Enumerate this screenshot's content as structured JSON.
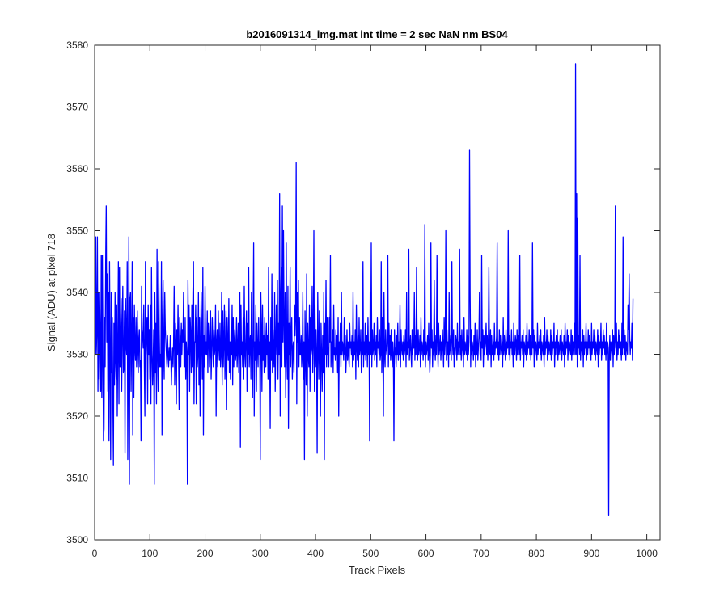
{
  "chart_data": {
    "type": "line",
    "title": "b2016091314_img.mat int time = 2 sec  NaN nm BS04",
    "xlabel": "Track Pixels",
    "ylabel": "Signal (ADU) at pixel 718",
    "xlim": [
      0,
      1024
    ],
    "ylim": [
      3500,
      3580
    ],
    "xticks": [
      "0",
      "100",
      "200",
      "300",
      "400",
      "500",
      "600",
      "700",
      "800",
      "900",
      "1000"
    ],
    "yticks": [
      "3500",
      "3510",
      "3520",
      "3530",
      "3540",
      "3550",
      "3560",
      "3570",
      "3580"
    ],
    "grid": false,
    "series": [
      {
        "color": "#0000ff",
        "x_start": 1,
        "x_step": 1,
        "note_estimated": true,
        "values": [
          3530,
          3549,
          3530,
          3534,
          3549,
          3524,
          3540,
          3526,
          3540,
          3532,
          3524,
          3546,
          3523,
          3546,
          3530,
          3516,
          3518,
          3536,
          3528,
          3545,
          3554,
          3532,
          3543,
          3524,
          3540,
          3516,
          3545,
          3530,
          3513,
          3540,
          3527,
          3536,
          3523,
          3512,
          3535,
          3525,
          3540,
          3529,
          3526,
          3538,
          3520,
          3531,
          3545,
          3522,
          3544,
          3528,
          3530,
          3539,
          3524,
          3534,
          3541,
          3527,
          3528,
          3537,
          3514,
          3539,
          3532,
          3530,
          3545,
          3513,
          3529,
          3549,
          3509,
          3539,
          3540,
          3524,
          3532,
          3545,
          3517,
          3536,
          3523,
          3538,
          3531,
          3529,
          3536,
          3528,
          3531,
          3537,
          3527,
          3532,
          3534,
          3528,
          3529,
          3516,
          3541,
          3534,
          3533,
          3531,
          3538,
          3528,
          3520,
          3545,
          3530,
          3534,
          3536,
          3522,
          3538,
          3530,
          3534,
          3526,
          3538,
          3522,
          3544,
          3530,
          3525,
          3529,
          3534,
          3509,
          3540,
          3527,
          3535,
          3522,
          3547,
          3530,
          3524,
          3545,
          3534,
          3528,
          3530,
          3528,
          3545,
          3517,
          3534,
          3542,
          3530,
          3526,
          3540,
          3534,
          3532,
          3530,
          3528,
          3533,
          3530,
          3528,
          3531,
          3529,
          3533,
          3530,
          3525,
          3529,
          3531,
          3528,
          3532,
          3541,
          3525,
          3530,
          3535,
          3522,
          3534,
          3530,
          3538,
          3530,
          3521,
          3536,
          3532,
          3528,
          3535,
          3530,
          3534,
          3532,
          3540,
          3528,
          3528,
          3536,
          3526,
          3532,
          3530,
          3509,
          3542,
          3530,
          3538,
          3524,
          3536,
          3533,
          3527,
          3538,
          3528,
          3540,
          3545,
          3522,
          3532,
          3532,
          3538,
          3522,
          3536,
          3528,
          3530,
          3540,
          3525,
          3536,
          3520,
          3532,
          3540,
          3532,
          3526,
          3544,
          3517,
          3533,
          3528,
          3541,
          3530,
          3532,
          3530,
          3537,
          3527,
          3535,
          3533,
          3528,
          3530,
          3537,
          3526,
          3530,
          3536,
          3532,
          3528,
          3534,
          3530,
          3531,
          3538,
          3520,
          3532,
          3534,
          3528,
          3537,
          3531,
          3529,
          3535,
          3528,
          3530,
          3540,
          3525,
          3537,
          3528,
          3532,
          3538,
          3526,
          3530,
          3537,
          3521,
          3536,
          3531,
          3529,
          3539,
          3527,
          3532,
          3526,
          3534,
          3530,
          3538,
          3525,
          3536,
          3528,
          3532,
          3534,
          3529,
          3530,
          3536,
          3528,
          3531,
          3535,
          3527,
          3532,
          3540,
          3515,
          3538,
          3530,
          3532,
          3528,
          3536,
          3526,
          3541,
          3530,
          3528,
          3533,
          3537,
          3524,
          3535,
          3530,
          3544,
          3528,
          3532,
          3533,
          3526,
          3540,
          3531,
          3523,
          3535,
          3548,
          3520,
          3532,
          3529,
          3538,
          3524,
          3535,
          3531,
          3528,
          3536,
          3530,
          3532,
          3513,
          3540,
          3534,
          3524,
          3538,
          3529,
          3533,
          3527,
          3536,
          3531,
          3528,
          3535,
          3530,
          3533,
          3526,
          3544,
          3530,
          3532,
          3518,
          3536,
          3529,
          3543,
          3527,
          3534,
          3530,
          3528,
          3540,
          3524,
          3532,
          3538,
          3530,
          3542,
          3526,
          3535,
          3530,
          3556,
          3520,
          3538,
          3544,
          3528,
          3554,
          3532,
          3550,
          3535,
          3528,
          3540,
          3523,
          3548,
          3530,
          3526,
          3541,
          3518,
          3535,
          3530,
          3544,
          3528,
          3533,
          3536,
          3526,
          3531,
          3532,
          3527,
          3538,
          3533,
          3536,
          3561,
          3522,
          3540,
          3532,
          3542,
          3528,
          3536,
          3530,
          3530,
          3533,
          3528,
          3530,
          3540,
          3526,
          3532,
          3513,
          3537,
          3530,
          3525,
          3543,
          3520,
          3535,
          3530,
          3528,
          3538,
          3524,
          3536,
          3530,
          3531,
          3541,
          3527,
          3532,
          3550,
          3524,
          3538,
          3528,
          3534,
          3530,
          3514,
          3540,
          3532,
          3526,
          3537,
          3530,
          3520,
          3535,
          3530,
          3524,
          3533,
          3527,
          3540,
          3513,
          3535,
          3530,
          3542,
          3528,
          3536,
          3530,
          3531,
          3528,
          3536,
          3532,
          3546,
          3528,
          3532,
          3530,
          3534,
          3527,
          3538,
          3530,
          3531,
          3529,
          3534,
          3530,
          3533,
          3527,
          3536,
          3520,
          3532,
          3530,
          3535,
          3528,
          3540,
          3530,
          3532,
          3531,
          3529,
          3536,
          3530,
          3533,
          3527,
          3530,
          3534,
          3529,
          3532,
          3530,
          3528,
          3535,
          3531,
          3532,
          3530,
          3533,
          3528,
          3540,
          3529,
          3532,
          3530,
          3534,
          3526,
          3538,
          3531,
          3529,
          3533,
          3528,
          3536,
          3530,
          3531,
          3534,
          3527,
          3532,
          3530,
          3545,
          3528,
          3532,
          3530,
          3535,
          3529,
          3531,
          3533,
          3528,
          3536,
          3530,
          3532,
          3516,
          3540,
          3530,
          3548,
          3528,
          3534,
          3530,
          3531,
          3535,
          3529,
          3532,
          3530,
          3533,
          3528,
          3536,
          3531,
          3532,
          3530,
          3534,
          3529,
          3530,
          3545,
          3527,
          3536,
          3530,
          3520,
          3540,
          3530,
          3528,
          3534,
          3531,
          3530,
          3532,
          3546,
          3528,
          3535,
          3530,
          3533,
          3529,
          3534,
          3530,
          3528,
          3532,
          3530,
          3516,
          3534,
          3530,
          3531,
          3528,
          3533,
          3530,
          3535,
          3529,
          3532,
          3530,
          3538,
          3528,
          3534,
          3531,
          3530,
          3532,
          3529,
          3533,
          3530,
          3531,
          3534,
          3528,
          3540,
          3530,
          3532,
          3531,
          3547,
          3529,
          3531,
          3533,
          3530,
          3528,
          3534,
          3530,
          3532,
          3531,
          3540,
          3529,
          3533,
          3530,
          3544,
          3532,
          3529,
          3534,
          3530,
          3531,
          3533,
          3528,
          3536,
          3530,
          3532,
          3531,
          3529,
          3534,
          3530,
          3551,
          3528,
          3532,
          3530,
          3531,
          3533,
          3529,
          3535,
          3530,
          3527,
          3530,
          3548,
          3531,
          3534,
          3528,
          3532,
          3530,
          3542,
          3531,
          3529,
          3533,
          3530,
          3546,
          3532,
          3528,
          3535,
          3530,
          3531,
          3533,
          3529,
          3532,
          3530,
          3534,
          3531,
          3528,
          3536,
          3530,
          3532,
          3550,
          3529,
          3534,
          3530,
          3532,
          3528,
          3540,
          3530,
          3531,
          3533,
          3529,
          3545,
          3532,
          3530,
          3534,
          3528,
          3531,
          3530,
          3533,
          3532,
          3529,
          3535,
          3530,
          3532,
          3531,
          3547,
          3530,
          3533,
          3529,
          3534,
          3531,
          3530,
          3528,
          3536,
          3530,
          3532,
          3531,
          3530,
          3534,
          3529,
          3533,
          3530,
          3532,
          3563,
          3540,
          3528,
          3534,
          3530,
          3532,
          3531,
          3529,
          3533,
          3530,
          3535,
          3528,
          3532,
          3530,
          3534,
          3529,
          3531,
          3533,
          3540,
          3530,
          3532,
          3529,
          3546,
          3531,
          3534,
          3528,
          3533,
          3530,
          3531,
          3532,
          3535,
          3530,
          3533,
          3529,
          3532,
          3544,
          3531,
          3530,
          3534,
          3528,
          3533,
          3530,
          3531,
          3532,
          3529,
          3535,
          3530,
          3532,
          3531,
          3533,
          3548,
          3530,
          3532,
          3529,
          3534,
          3530,
          3533,
          3531,
          3530,
          3532,
          3528,
          3536,
          3530,
          3533,
          3531,
          3529,
          3534,
          3530,
          3532,
          3531,
          3550,
          3530,
          3533,
          3529,
          3532,
          3531,
          3534,
          3530,
          3532,
          3528,
          3535,
          3531,
          3530,
          3533,
          3532,
          3529,
          3534,
          3530,
          3531,
          3533,
          3530,
          3546,
          3529,
          3532,
          3531,
          3533,
          3530,
          3534,
          3528,
          3532,
          3531,
          3530,
          3533,
          3529,
          3535,
          3530,
          3532,
          3531,
          3534,
          3530,
          3533,
          3529,
          3532,
          3530,
          3548,
          3531,
          3534,
          3528,
          3533,
          3530,
          3532,
          3531,
          3529,
          3535,
          3530,
          3532,
          3531,
          3533,
          3530,
          3534,
          3529,
          3532,
          3531,
          3530,
          3533,
          3528,
          3536,
          3530,
          3532,
          3531,
          3534,
          3529,
          3533,
          3530,
          3532,
          3531,
          3530,
          3534,
          3529,
          3533,
          3530,
          3532,
          3531,
          3535,
          3528,
          3532,
          3530,
          3533,
          3531,
          3534,
          3529,
          3532,
          3530,
          3531,
          3533,
          3530,
          3534,
          3529,
          3532,
          3531,
          3530,
          3533,
          3528,
          3535,
          3530,
          3532,
          3531,
          3534,
          3529,
          3533,
          3530,
          3532,
          3531,
          3530,
          3534,
          3529,
          3533,
          3530,
          3532,
          3531,
          3535,
          3530,
          3577,
          3530,
          3556,
          3528,
          3552,
          3531,
          3533,
          3530,
          3546,
          3529,
          3532,
          3531,
          3530,
          3534,
          3528,
          3533,
          3530,
          3532,
          3531,
          3535,
          3529,
          3532,
          3530,
          3534,
          3531,
          3533,
          3530,
          3532,
          3529,
          3535,
          3530,
          3532,
          3531,
          3534,
          3530,
          3533,
          3529,
          3532,
          3531,
          3530,
          3534,
          3528,
          3533,
          3530,
          3532,
          3531,
          3535,
          3529,
          3532,
          3530,
          3534,
          3531,
          3533,
          3530,
          3532,
          3529,
          3535,
          3530,
          3532,
          3531,
          3504,
          3530,
          3533,
          3529,
          3532,
          3531,
          3530,
          3534,
          3528,
          3533,
          3530,
          3532,
          3554,
          3531,
          3535,
          3529,
          3532,
          3530,
          3534,
          3531,
          3533,
          3530,
          3532,
          3529,
          3535,
          3530,
          3549,
          3531,
          3534,
          3530,
          3533,
          3529,
          3532,
          3531,
          3530,
          3538,
          3534,
          3543,
          3533,
          3530,
          3532,
          3531,
          3535,
          3529,
          3539
        ]
      }
    ]
  }
}
